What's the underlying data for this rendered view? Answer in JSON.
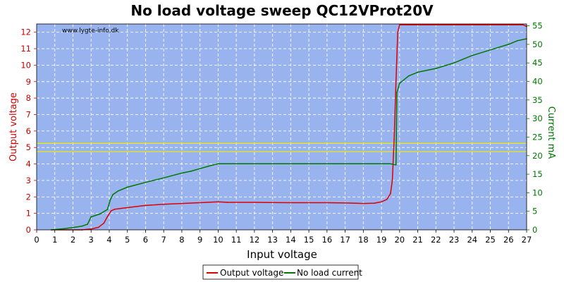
{
  "chart_data": {
    "type": "line",
    "title": "No load voltage sweep QC12VProt20V",
    "watermark": "www.lygte-info.dk",
    "xlabel": "Input voltage",
    "ylabel_left": "Output voltage",
    "ylabel_right": "Current mA",
    "xlim": [
      0,
      27
    ],
    "ylim_left": [
      0,
      12.5
    ],
    "ylim_right": [
      0,
      55.5
    ],
    "x_ticks": [
      "0",
      "1",
      "2",
      "3",
      "4",
      "5",
      "6",
      "7",
      "8",
      "9",
      "10",
      "11",
      "12",
      "13",
      "14",
      "15",
      "16",
      "17",
      "18",
      "19",
      "20",
      "21",
      "22",
      "23",
      "24",
      "25",
      "26",
      "27"
    ],
    "y_left_ticks": [
      "0",
      "1",
      "2",
      "3",
      "4",
      "5",
      "6",
      "7",
      "8",
      "9",
      "10",
      "11",
      "12"
    ],
    "y_right_ticks": [
      "0",
      "5",
      "10",
      "15",
      "20",
      "25",
      "30",
      "35",
      "40",
      "45",
      "50",
      "55"
    ],
    "reference_lines_left": [
      4.75,
      5.25
    ],
    "grid": true,
    "legend_position": "bottom-center",
    "colors": {
      "plot_bg": "#99b3ee",
      "grid": "#ffffff",
      "voltage": "#dd0000",
      "current": "#007700",
      "reference": "#eeee00",
      "left_axis": "#cc0000",
      "right_axis": "#007700"
    },
    "series": [
      {
        "name": "Output voltage",
        "axis": "left",
        "x": [
          0.8,
          2.5,
          3.0,
          3.4,
          3.7,
          3.9,
          4.1,
          4.3,
          5.0,
          6.0,
          7.0,
          8.0,
          9.0,
          10.0,
          10.5,
          12.0,
          14.0,
          16.0,
          17.0,
          18.0,
          18.6,
          19.0,
          19.3,
          19.5,
          19.6,
          19.7,
          19.8,
          19.9,
          20.0,
          26.8,
          27.0
        ],
        "values": [
          0,
          0,
          0.05,
          0.15,
          0.4,
          0.8,
          1.15,
          1.25,
          1.35,
          1.48,
          1.55,
          1.6,
          1.65,
          1.7,
          1.67,
          1.67,
          1.65,
          1.65,
          1.63,
          1.6,
          1.62,
          1.7,
          1.85,
          2.2,
          3.0,
          5.5,
          9.0,
          12.0,
          12.45,
          12.45,
          12.35
        ]
      },
      {
        "name": "No load current",
        "axis": "right",
        "x": [
          0.8,
          1.5,
          2.0,
          2.5,
          2.8,
          3.0,
          3.5,
          3.9,
          4.05,
          4.2,
          4.5,
          5.0,
          6.0,
          7.0,
          8.0,
          8.5,
          9.0,
          9.5,
          10.0,
          11.0,
          12.0,
          13.0,
          14.0,
          15.0,
          16.0,
          17.0,
          18.0,
          19.0,
          19.5,
          19.8,
          19.85,
          20.0,
          20.5,
          21.0,
          22.0,
          23.0,
          24.0,
          25.0,
          26.0,
          26.5,
          27.0
        ],
        "values": [
          0,
          0.3,
          0.6,
          1.0,
          1.5,
          3.5,
          4.3,
          5.5,
          8.0,
          9.5,
          10.5,
          11.5,
          12.8,
          14.0,
          15.3,
          15.8,
          16.5,
          17.2,
          17.8,
          17.8,
          17.8,
          17.8,
          17.8,
          17.8,
          17.8,
          17.8,
          17.8,
          17.8,
          17.8,
          17.5,
          37.0,
          39.5,
          41.5,
          42.5,
          43.5,
          45.0,
          47.0,
          48.5,
          50.0,
          51.0,
          51.5
        ]
      }
    ]
  }
}
